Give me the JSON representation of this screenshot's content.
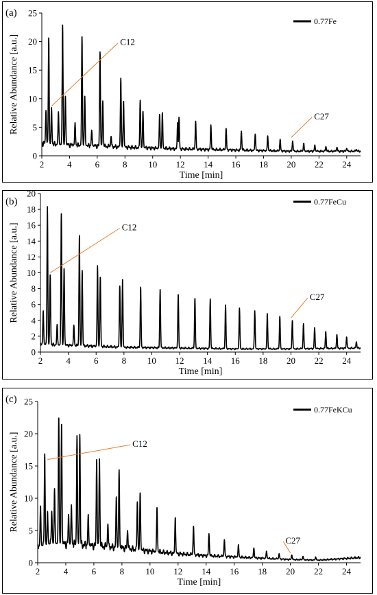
{
  "chart_data": [
    {
      "type": "line",
      "panel_label": "(a)",
      "xlabel": "Time [min]",
      "ylabel": "Relative Abundance [a.u.]",
      "xlim": [
        2,
        25
      ],
      "ylim": [
        0,
        25
      ],
      "xticks": [
        2,
        4,
        6,
        8,
        10,
        12,
        14,
        16,
        18,
        20,
        22,
        24
      ],
      "yticks": [
        0,
        5,
        10,
        15,
        20,
        25
      ],
      "grid": false,
      "legend_position": "top-right",
      "series": [
        {
          "name": "0.77Fe",
          "color": "#000000",
          "baseline": [
            [
              2,
              2.2
            ],
            [
              3,
              2.0
            ],
            [
              5,
              1.8
            ],
            [
              8,
              1.5
            ],
            [
              12,
              1.2
            ],
            [
              16,
              1.0
            ],
            [
              20,
              0.8
            ],
            [
              25,
              0.8
            ]
          ],
          "peaks": [
            [
              2.3,
              8
            ],
            [
              2.5,
              20.8
            ],
            [
              2.7,
              8.5
            ],
            [
              3.2,
              7.7
            ],
            [
              3.5,
              23.1
            ],
            [
              3.7,
              10.5
            ],
            [
              4.4,
              5.8
            ],
            [
              4.9,
              21.0
            ],
            [
              5.1,
              10.5
            ],
            [
              5.6,
              4.5
            ],
            [
              6.2,
              18.2
            ],
            [
              6.4,
              9.6
            ],
            [
              7.0,
              3.4
            ],
            [
              7.7,
              13.7
            ],
            [
              7.9,
              9.6
            ],
            [
              9.1,
              9.8
            ],
            [
              9.3,
              7.8
            ],
            [
              10.5,
              7.3
            ],
            [
              10.7,
              7.6
            ],
            [
              11.8,
              5.8
            ],
            [
              11.9,
              6.8
            ],
            [
              13.1,
              6.1
            ],
            [
              14.2,
              5.4
            ],
            [
              15.3,
              4.8
            ],
            [
              16.4,
              4.3
            ],
            [
              17.4,
              3.8
            ],
            [
              18.3,
              3.5
            ],
            [
              19.2,
              2.9
            ],
            [
              20.1,
              2.6
            ],
            [
              20.9,
              2.2
            ],
            [
              21.7,
              1.9
            ],
            [
              22.5,
              1.6
            ],
            [
              23.3,
              1.5
            ],
            [
              24.0,
              1.3
            ],
            [
              24.7,
              1.1
            ]
          ]
        }
      ],
      "annotations": [
        {
          "text": "C12",
          "x": 2.7,
          "y": 8.7,
          "label_x": 7.5,
          "label_y": 20
        },
        {
          "text": "C27",
          "x": 20.0,
          "y": 3.2,
          "label_x": 21.5,
          "label_y": 7
        }
      ]
    },
    {
      "type": "line",
      "panel_label": "(b)",
      "xlabel": "Time [min]",
      "ylabel": "Relative Abundance [a.u.]",
      "xlim": [
        2,
        25
      ],
      "ylim": [
        0,
        20
      ],
      "xticks": [
        2,
        4,
        6,
        8,
        10,
        12,
        14,
        16,
        18,
        20,
        22,
        24
      ],
      "yticks": [
        0,
        2,
        4,
        6,
        8,
        10,
        12,
        14,
        16,
        18,
        20
      ],
      "grid": false,
      "legend_position": "top-right",
      "series": [
        {
          "name": "0.77FeCu",
          "color": "#000000",
          "baseline": [
            [
              2,
              1.0
            ],
            [
              3,
              0.9
            ],
            [
              5,
              0.8
            ],
            [
              8,
              0.6
            ],
            [
              12,
              0.5
            ],
            [
              16,
              0.4
            ],
            [
              20,
              0.4
            ],
            [
              25,
              0.5
            ]
          ],
          "peaks": [
            [
              2.2,
              5.2
            ],
            [
              2.5,
              18.5
            ],
            [
              2.7,
              9.8
            ],
            [
              3.2,
              3.5
            ],
            [
              3.5,
              17.6
            ],
            [
              3.7,
              10.6
            ],
            [
              4.4,
              3.4
            ],
            [
              4.8,
              14.7
            ],
            [
              5.0,
              10.3
            ],
            [
              6.1,
              11.0
            ],
            [
              6.3,
              9.5
            ],
            [
              7.7,
              8.4
            ],
            [
              7.9,
              9.2
            ],
            [
              9.2,
              8.2
            ],
            [
              10.6,
              7.9
            ],
            [
              11.9,
              7.3
            ],
            [
              13.1,
              6.8
            ],
            [
              14.2,
              6.7
            ],
            [
              15.3,
              6.0
            ],
            [
              16.3,
              5.6
            ],
            [
              17.4,
              5.2
            ],
            [
              18.3,
              4.9
            ],
            [
              19.2,
              4.5
            ],
            [
              20.1,
              4.0
            ],
            [
              20.9,
              3.6
            ],
            [
              21.7,
              3.1
            ],
            [
              22.5,
              2.6
            ],
            [
              23.3,
              2.2
            ],
            [
              24.0,
              1.9
            ],
            [
              24.7,
              1.3
            ]
          ]
        }
      ],
      "annotations": [
        {
          "text": "C12",
          "x": 2.7,
          "y": 10,
          "label_x": 7.7,
          "label_y": 15.8
        },
        {
          "text": "C27",
          "x": 20.0,
          "y": 4.3,
          "label_x": 21.2,
          "label_y": 7
        }
      ]
    },
    {
      "type": "line",
      "panel_label": "(c)",
      "xlabel": "Time [min]",
      "ylabel": "Relative Abundance [a.u.]",
      "xlim": [
        2,
        25
      ],
      "ylim": [
        0,
        25
      ],
      "xticks": [
        2,
        4,
        6,
        8,
        10,
        12,
        14,
        16,
        18,
        20,
        22,
        24
      ],
      "yticks": [
        0,
        5,
        10,
        15,
        20,
        25
      ],
      "grid": false,
      "legend_position": "top-right",
      "series": [
        {
          "name": "0.77FeKCu",
          "color": "#000000",
          "baseline": [
            [
              2,
              2.5
            ],
            [
              3,
              3.0
            ],
            [
              5,
              2.8
            ],
            [
              8,
              2.3
            ],
            [
              10,
              1.8
            ],
            [
              12,
              1.4
            ],
            [
              14,
              1.1
            ],
            [
              16,
              0.9
            ],
            [
              18,
              0.7
            ],
            [
              20,
              0.5
            ],
            [
              22,
              0.4
            ],
            [
              25,
              0.8
            ]
          ],
          "peaks": [
            [
              2.2,
              8.8
            ],
            [
              2.5,
              17.0
            ],
            [
              2.7,
              8.0
            ],
            [
              3.0,
              8.0
            ],
            [
              3.2,
              11.5
            ],
            [
              3.5,
              22.6
            ],
            [
              3.7,
              21.6
            ],
            [
              4.2,
              7.5
            ],
            [
              4.4,
              9.0
            ],
            [
              4.8,
              19.7
            ],
            [
              5.0,
              19.9
            ],
            [
              5.6,
              7.5
            ],
            [
              6.2,
              16.0
            ],
            [
              6.4,
              16.1
            ],
            [
              7.0,
              6.0
            ],
            [
              7.6,
              10.2
            ],
            [
              7.8,
              14.4
            ],
            [
              8.4,
              5.0
            ],
            [
              9.1,
              9.5
            ],
            [
              9.3,
              10.9
            ],
            [
              10.5,
              8.6
            ],
            [
              11.8,
              7.0
            ],
            [
              13.1,
              5.7
            ],
            [
              14.2,
              4.5
            ],
            [
              15.3,
              3.6
            ],
            [
              16.3,
              2.8
            ],
            [
              17.4,
              2.3
            ],
            [
              18.3,
              1.8
            ],
            [
              19.2,
              1.4
            ],
            [
              20.1,
              1.2
            ],
            [
              20.9,
              1.0
            ],
            [
              21.8,
              0.9
            ]
          ]
        }
      ],
      "annotations": [
        {
          "text": "C12",
          "x": 2.7,
          "y": 16,
          "label_x": 8.6,
          "label_y": 18.5
        },
        {
          "text": "C27",
          "x": 20.0,
          "y": 1.5,
          "label_x": 19.5,
          "label_y": 3.5
        }
      ]
    }
  ]
}
